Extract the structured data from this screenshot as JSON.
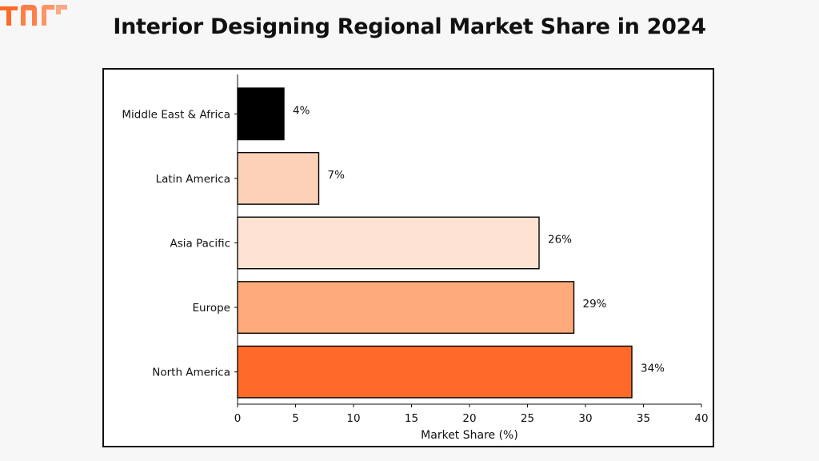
{
  "page": {
    "title": "Interior Designing Regional Market Share in 2024"
  },
  "logo": {
    "icon": "brand-logo-icon",
    "color": "#ff6a28"
  },
  "chart_data": {
    "type": "bar",
    "orientation": "horizontal",
    "categories": [
      "North America",
      "Europe",
      "Asia Pacific",
      "Latin America",
      "Middle East & Africa"
    ],
    "values": [
      34,
      29,
      26,
      7,
      4
    ],
    "value_labels": [
      "34%",
      "29%",
      "26%",
      "7%",
      "4%"
    ],
    "colors": [
      "#ff6a28",
      "#feaa7a",
      "#fee2d2",
      "#fdd1b7",
      "#000000"
    ],
    "edge_color": "#000000",
    "xlabel": "Market Share (%)",
    "ylabel": "",
    "xlim": [
      0,
      40
    ],
    "xticks": [
      0,
      5,
      10,
      15,
      20,
      25,
      30,
      35,
      40
    ],
    "grid": false,
    "legend": "none"
  }
}
